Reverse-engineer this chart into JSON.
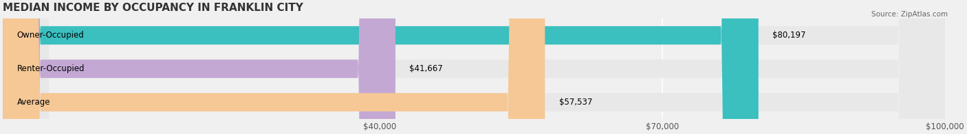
{
  "title": "MEDIAN INCOME BY OCCUPANCY IN FRANKLIN CITY",
  "source": "Source: ZipAtlas.com",
  "categories": [
    "Owner-Occupied",
    "Renter-Occupied",
    "Average"
  ],
  "values": [
    80197,
    41667,
    57537
  ],
  "bar_colors": [
    "#3bbfbf",
    "#c4a8d4",
    "#f5c896"
  ],
  "bar_labels": [
    "$80,197",
    "$41,667",
    "$57,537"
  ],
  "xlim": [
    0,
    100000
  ],
  "xticks": [
    40000,
    70000,
    100000
  ],
  "xtick_labels": [
    "$40,000",
    "$70,000",
    "$100,000"
  ],
  "background_color": "#f0f0f0",
  "bar_background_color": "#e8e8e8",
  "title_fontsize": 11,
  "label_fontsize": 8.5,
  "bar_height": 0.55
}
